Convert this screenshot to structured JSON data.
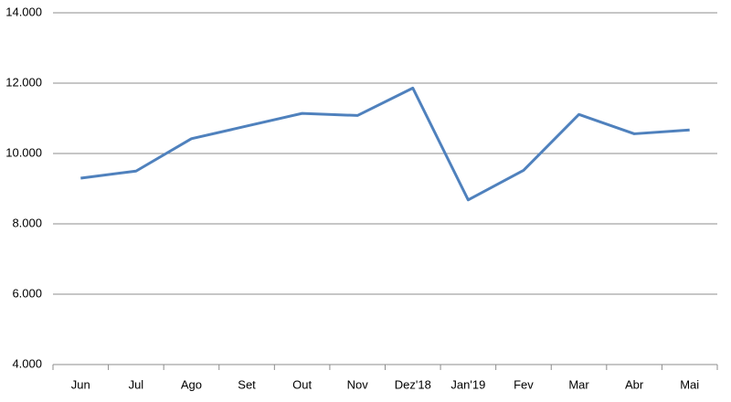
{
  "chart_data": {
    "type": "line",
    "categories": [
      "Jun",
      "Jul",
      "Ago",
      "Set",
      "Out",
      "Nov",
      "Dez'18",
      "Jan'19",
      "Fev",
      "Mar",
      "Abr",
      "Mai"
    ],
    "series": [
      {
        "color": "#4f81bd",
        "values": [
          9300,
          9500,
          10420,
          10780,
          11140,
          11080,
          11860,
          8680,
          9520,
          11110,
          10560,
          10670
        ]
      }
    ],
    "ylim": [
      4000,
      14000
    ],
    "yticks": [
      {
        "value": 4000,
        "label": "4.000"
      },
      {
        "value": 6000,
        "label": "6.000"
      },
      {
        "value": 8000,
        "label": "8.000"
      },
      {
        "value": 10000,
        "label": "10.000"
      },
      {
        "value": 12000,
        "label": "12.000"
      },
      {
        "value": 14000,
        "label": "14.000"
      }
    ],
    "grid": true
  }
}
